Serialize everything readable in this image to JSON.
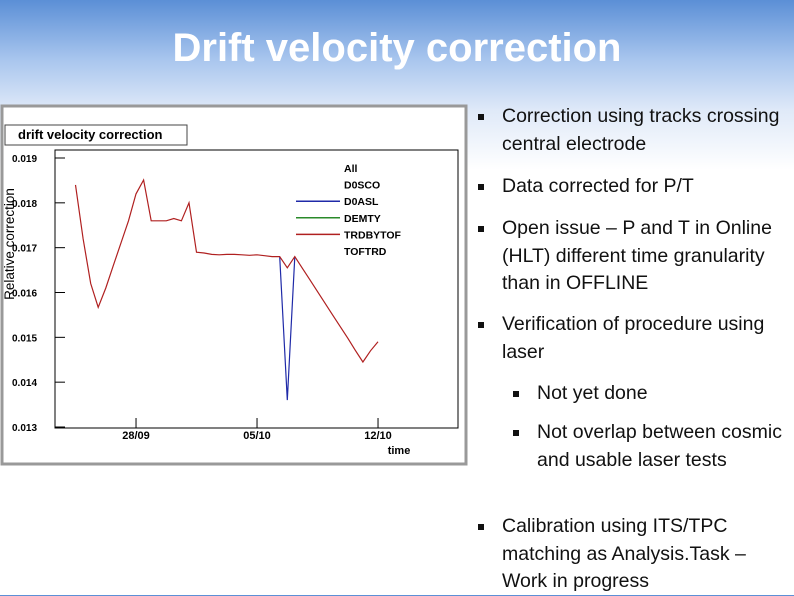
{
  "title": "Drift velocity correction",
  "bullets": [
    {
      "text": "Correction using tracks crossing central electrode"
    },
    {
      "text": "Data corrected for P/T"
    },
    {
      "text": "Open issue – P and T in Online (HLT) different time granularity than in OFFLINE"
    },
    {
      "text": "Verification of procedure using laser",
      "subitems": [
        "Not yet done",
        "Not overlap between cosmic and usable laser tests"
      ]
    },
    {
      "text": "Calibration using ITS/TPC matching as Analysis.Task – Work in progress"
    }
  ],
  "chart_data": {
    "type": "line",
    "title": "drift velocity correction",
    "ylabel": "Relative correction",
    "xlabel": "time",
    "categories": [
      null,
      null,
      null,
      null,
      null,
      null,
      null,
      null,
      null,
      null,
      "28/09",
      null,
      null,
      null,
      null,
      null,
      null,
      null,
      null,
      null,
      null,
      null,
      null,
      null,
      null,
      null,
      "05/10",
      null,
      null,
      null,
      null,
      null,
      null,
      null,
      null,
      null,
      null,
      null,
      null,
      null,
      null,
      null,
      "12/10",
      null,
      null,
      null,
      null,
      null,
      null,
      null,
      null,
      null,
      null
    ],
    "ylim": [
      0.013,
      0.019
    ],
    "yticks": [
      0.013,
      0.014,
      0.015,
      0.016,
      0.017,
      0.018,
      0.019
    ],
    "series": [
      {
        "name": "All",
        "values": [
          null,
          null,
          null,
          null,
          null,
          null,
          null,
          null,
          null,
          null,
          null,
          null,
          null,
          null,
          null,
          null,
          null,
          null,
          null,
          null,
          null,
          null,
          null,
          null,
          null,
          null,
          null,
          null,
          null,
          null,
          null,
          null,
          null,
          null,
          null,
          null,
          null,
          null,
          null,
          null,
          null,
          null,
          null,
          null,
          null,
          null,
          null,
          null,
          null,
          null,
          null,
          null,
          null
        ]
      },
      {
        "name": "D0SCO",
        "values": [
          null,
          null,
          null,
          null,
          null,
          null,
          null,
          null,
          null,
          null,
          null,
          null,
          null,
          null,
          null,
          null,
          null,
          null,
          null,
          null,
          null,
          null,
          null,
          null,
          null,
          null,
          null,
          null,
          null,
          null,
          null,
          null,
          null,
          null,
          null,
          null,
          null,
          null,
          null,
          null,
          null,
          null,
          null,
          null,
          null,
          null,
          null,
          null,
          null,
          null,
          null,
          null,
          null
        ]
      },
      {
        "name": "D0ASL",
        "color": "#1f2aa8",
        "values": [
          null,
          null,
          null,
          null,
          null,
          null,
          null,
          null,
          null,
          null,
          null,
          null,
          null,
          null,
          null,
          null,
          null,
          null,
          null,
          null,
          null,
          null,
          null,
          null,
          null,
          null,
          null,
          null,
          null,
          0.0168,
          0.0136,
          0.0168,
          null,
          null,
          null,
          null,
          null,
          null,
          null,
          null,
          null,
          null,
          null,
          null,
          null,
          null,
          null,
          null,
          null,
          null,
          null,
          null,
          null
        ]
      },
      {
        "name": "DEMTY",
        "color": "#2a8a2a",
        "values": [
          null,
          null,
          null,
          null,
          null,
          null,
          null,
          null,
          null,
          null,
          null,
          null,
          null,
          null,
          null,
          null,
          null,
          null,
          null,
          null,
          null,
          null,
          null,
          null,
          null,
          null,
          null,
          null,
          null,
          null,
          null,
          null,
          null,
          null,
          null,
          null,
          null,
          null,
          null,
          null,
          null,
          null,
          null,
          null,
          null,
          null,
          null,
          null,
          null,
          null,
          null,
          null,
          null
        ]
      },
      {
        "name": "TRDBYTOF",
        "color": "#b02020",
        "values": [
          null,
          null,
          0.0184,
          0.0172,
          0.0162,
          0.01567,
          0.0161,
          0.0166,
          0.0171,
          0.0176,
          0.0182,
          0.01851,
          0.0176,
          0.0176,
          0.0176,
          0.01765,
          0.0176,
          0.018,
          0.0169,
          0.01688,
          0.01685,
          0.01684,
          0.01685,
          0.01685,
          0.01684,
          0.01683,
          0.01684,
          0.01682,
          0.0168,
          0.0168,
          0.01655,
          0.0168,
          0.01654,
          0.01628,
          0.01602,
          0.01576,
          0.0155,
          0.01524,
          0.01498,
          0.01471,
          0.01445,
          0.0147,
          0.0149,
          null,
          null,
          null,
          null,
          null,
          null,
          null,
          null,
          null,
          null
        ]
      },
      {
        "name": "TOFTRD",
        "values": [
          null,
          null,
          null,
          null,
          null,
          null,
          null,
          null,
          null,
          null,
          null,
          null,
          null,
          null,
          null,
          null,
          null,
          null,
          null,
          null,
          null,
          null,
          null,
          null,
          null,
          null,
          null,
          null,
          null,
          null,
          null,
          null,
          null,
          null,
          null,
          null,
          null,
          null,
          null,
          null,
          null,
          null,
          null,
          null,
          null,
          null,
          null,
          null,
          null,
          null,
          null,
          null,
          null
        ]
      }
    ]
  }
}
